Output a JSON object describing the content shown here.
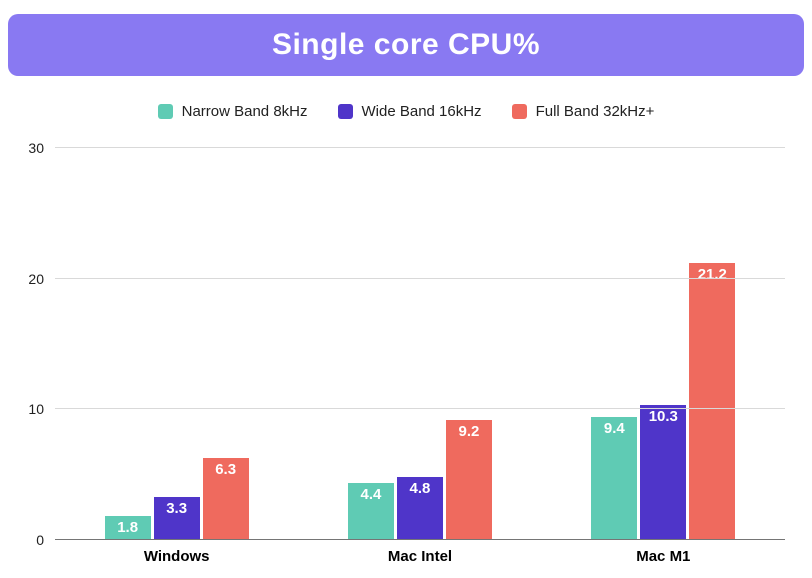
{
  "banner": {
    "bg_color": "#8979f2",
    "text_color": "#ffffff"
  },
  "chart_data": {
    "type": "bar",
    "title": "Single core CPU%",
    "categories": [
      "Windows",
      "Mac Intel",
      "Mac M1"
    ],
    "series": [
      {
        "name": "Narrow Band 8kHz",
        "color": "#5fcbb4",
        "values": [
          1.8,
          4.4,
          9.4
        ]
      },
      {
        "name": "Wide Band 16kHz",
        "color": "#4f35c9",
        "values": [
          3.3,
          4.8,
          10.3
        ]
      },
      {
        "name": "Full Band 32kHz+",
        "color": "#ef6a5e",
        "values": [
          6.3,
          9.2,
          21.2
        ]
      }
    ],
    "xlabel": "",
    "ylabel": "",
    "ylim": [
      0,
      30
    ],
    "yticks": [
      0,
      10,
      20,
      30
    ],
    "grid": true,
    "legend_position": "top",
    "value_labels": true
  }
}
